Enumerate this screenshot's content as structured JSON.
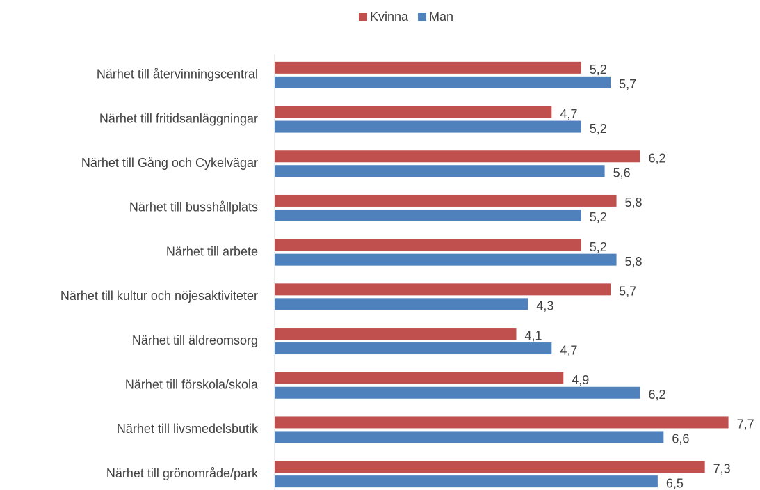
{
  "chart_data": {
    "type": "bar",
    "orientation": "horizontal",
    "categories": [
      "Närhet till återvinningscentral",
      "Närhet till fritidsanläggningar",
      "Närhet till Gång och Cykelvägar",
      "Närhet till busshållplats",
      "Närhet till arbete",
      "Närhet till kultur och nöjesaktiviteter",
      "Närhet till äldreomsorg",
      "Närhet till förskola/skola",
      "Närhet till livsmedelsbutik",
      "Närhet till grönområde/park"
    ],
    "series": [
      {
        "name": "Kvinna",
        "color": "#c0504d",
        "values": [
          5.2,
          4.7,
          6.2,
          5.8,
          5.2,
          5.7,
          4.1,
          4.9,
          7.7,
          7.3
        ],
        "value_labels": [
          "5,2",
          "4,7",
          "6,2",
          "5,8",
          "5,2",
          "5,7",
          "4,1",
          "4,9",
          "7,7",
          "7,3"
        ]
      },
      {
        "name": "Man",
        "color": "#4f81bd",
        "values": [
          5.7,
          5.2,
          5.6,
          5.2,
          5.8,
          4.3,
          4.7,
          6.2,
          6.6,
          6.5
        ],
        "value_labels": [
          "5,7",
          "5,2",
          "5,6",
          "5,2",
          "5,8",
          "4,3",
          "4,7",
          "6,2",
          "6,6",
          "6,5"
        ]
      }
    ],
    "xlim": [
      0,
      8
    ],
    "legend": "top"
  }
}
